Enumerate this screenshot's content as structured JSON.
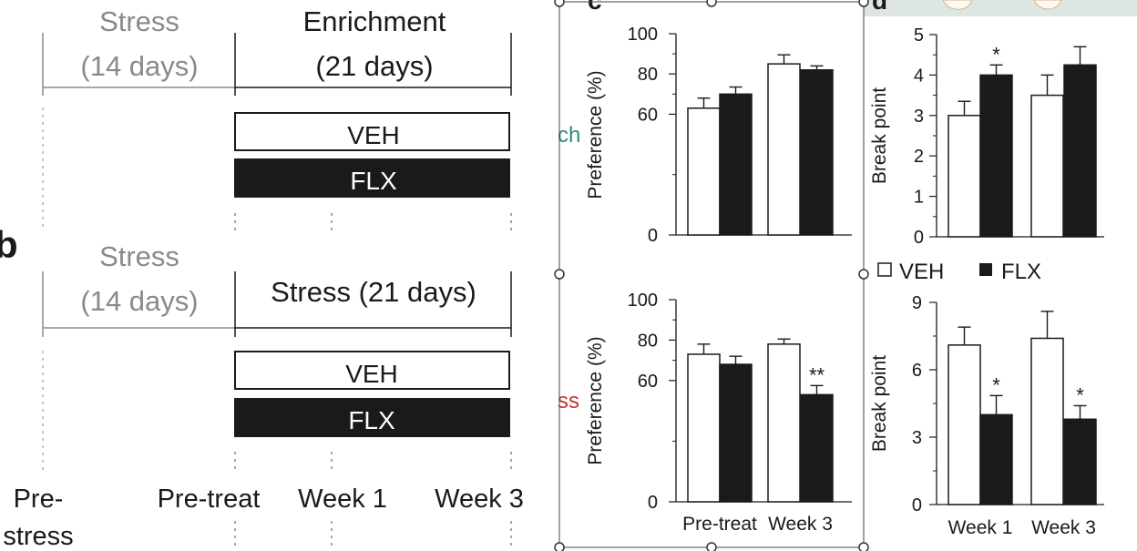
{
  "colors": {
    "veh_fill": "#ffffff",
    "flx_fill": "#1a1a1a",
    "gray_text": "#8a8a8a",
    "ink": "#1a1a1a",
    "teal": "#2e8b7a",
    "red": "#c0392b"
  },
  "timeline_a": {
    "stress_line1": "Stress",
    "stress_line2": "(14 days)",
    "enrich_line1": "Enrichment",
    "enrich_line2": "(21 days)",
    "veh": "VEH",
    "flx": "FLX"
  },
  "timeline_b": {
    "panel_letter": "b",
    "stress_line1": "Stress",
    "stress_line2": "(14 days)",
    "stress2_label": "Stress (21 days)",
    "veh": "VEH",
    "flx": "FLX"
  },
  "timepoints": {
    "prestress_line1": "Pre-",
    "prestress_line2": "stress",
    "pretreat": "Pre-treat",
    "week1": "Week 1",
    "week3": "Week 3"
  },
  "cut_labels": {
    "top": "ch",
    "bottom": "ss"
  },
  "panel_letters": {
    "c": "c",
    "d": "d"
  },
  "legend": {
    "veh": "VEH",
    "flx": "FLX"
  },
  "chart_data": [
    {
      "id": "c-top",
      "type": "bar",
      "ylabel": "Preference (%)",
      "ylim": [
        0,
        100
      ],
      "yticks": [
        0,
        60,
        80,
        100
      ],
      "categories": [
        "",
        ""
      ],
      "series": [
        {
          "values": [
            63,
            70
          ],
          "err": [
            5,
            3.5
          ]
        },
        {
          "values": [
            85,
            82
          ],
          "err": [
            4.5,
            2
          ]
        }
      ],
      "annotations": []
    },
    {
      "id": "d-top",
      "type": "bar",
      "ylabel": "Break point",
      "ylim": [
        0,
        5
      ],
      "yticks": [
        0,
        1,
        2,
        3,
        4,
        5
      ],
      "categories": [
        "",
        ""
      ],
      "series": [
        {
          "values": [
            3.0,
            4.0
          ],
          "err": [
            0.35,
            0.25
          ]
        },
        {
          "values": [
            3.5,
            4.25
          ],
          "err": [
            0.5,
            0.45
          ]
        }
      ],
      "annotations": [
        {
          "group": 0,
          "bar": 1,
          "text": "*"
        }
      ]
    },
    {
      "id": "c-bottom",
      "type": "bar",
      "ylabel": "Preference (%)",
      "ylim": [
        0,
        100
      ],
      "yticks": [
        0,
        60,
        80,
        100
      ],
      "categories": [
        "Pre-treat",
        "Week 3"
      ],
      "series": [
        {
          "values": [
            73,
            68
          ],
          "err": [
            5,
            4
          ]
        },
        {
          "values": [
            78,
            53
          ],
          "err": [
            2.5,
            4.5
          ]
        }
      ],
      "annotations": [
        {
          "group": 1,
          "bar": 1,
          "text": "**"
        }
      ]
    },
    {
      "id": "d-bottom",
      "type": "bar",
      "ylabel": "Break point",
      "ylim": [
        0,
        9
      ],
      "yticks": [
        0,
        3,
        6,
        9
      ],
      "categories": [
        "Week 1",
        "Week 3"
      ],
      "series": [
        {
          "values": [
            7.1,
            4.0
          ],
          "err": [
            0.8,
            0.85
          ]
        },
        {
          "values": [
            7.4,
            3.8
          ],
          "err": [
            1.2,
            0.6
          ]
        }
      ],
      "annotations": [
        {
          "group": 0,
          "bar": 1,
          "text": "*"
        },
        {
          "group": 1,
          "bar": 1,
          "text": "*"
        }
      ]
    }
  ]
}
